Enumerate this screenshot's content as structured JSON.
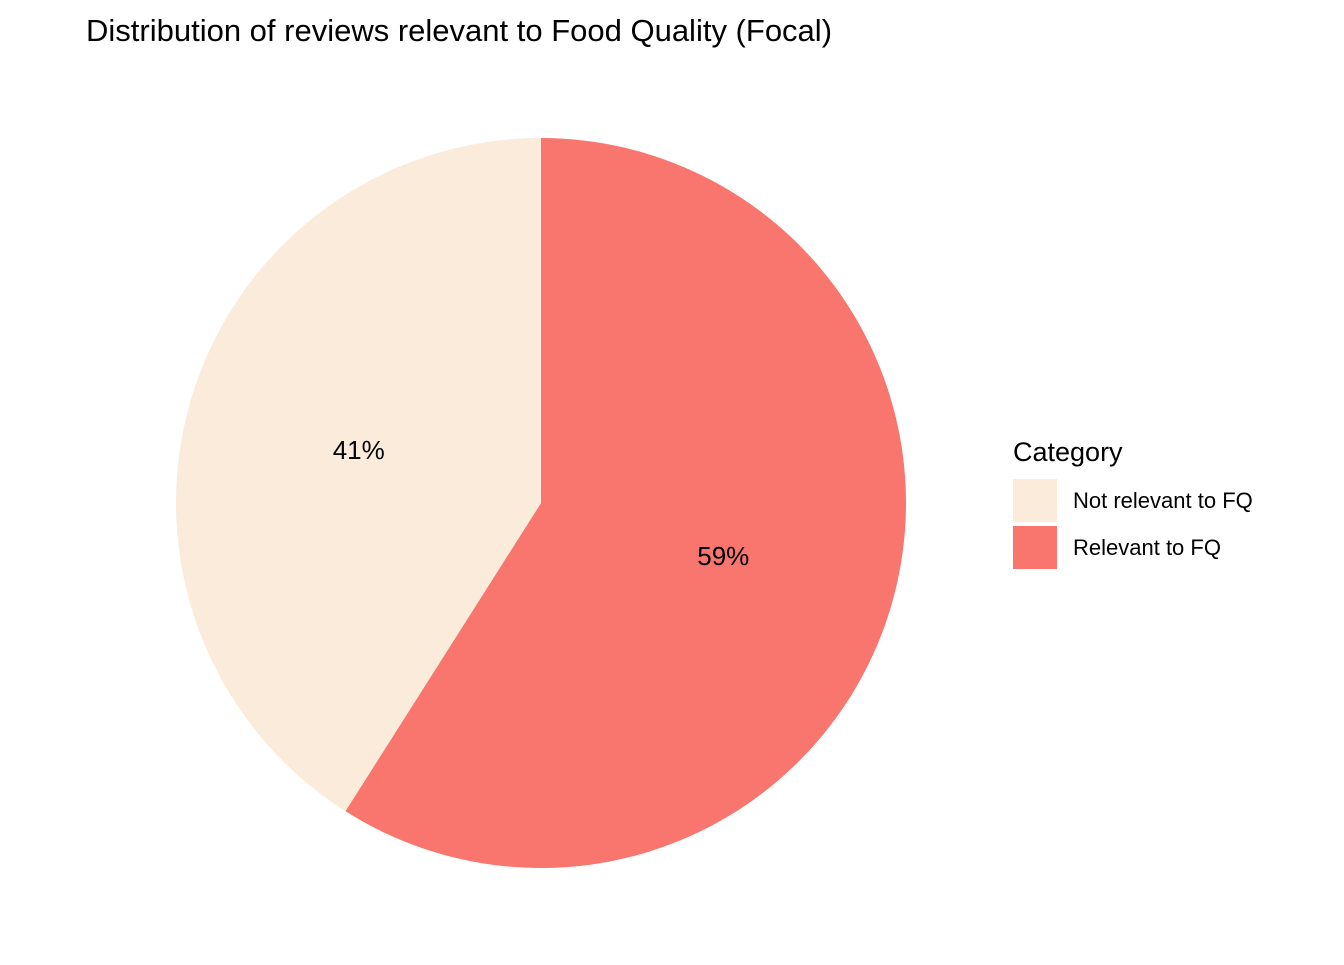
{
  "chart_data": {
    "type": "pie",
    "title": "Distribution of reviews relevant to Food Quality (Focal)",
    "legend": {
      "title": "Category",
      "position": "right"
    },
    "start_angle": "top",
    "direction": "clockwise",
    "slices": [
      {
        "label": "Relevant to FQ",
        "value": 59,
        "display": "59%",
        "color": "#F8766D"
      },
      {
        "label": "Not relevant to FQ",
        "value": 41,
        "display": "41%",
        "color": "#FBEBDA"
      }
    ],
    "legend_order": [
      "Not relevant to FQ",
      "Relevant to FQ"
    ]
  }
}
